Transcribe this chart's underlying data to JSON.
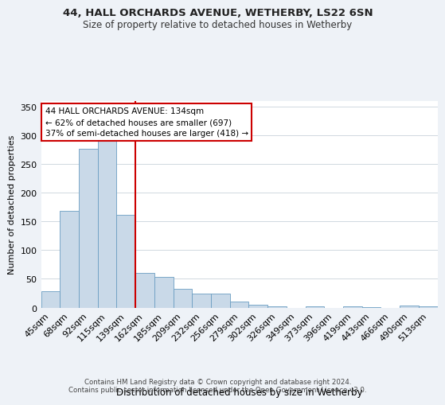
{
  "title": "44, HALL ORCHARDS AVENUE, WETHERBY, LS22 6SN",
  "subtitle": "Size of property relative to detached houses in Wetherby",
  "xlabel": "Distribution of detached houses by size in Wetherby",
  "ylabel": "Number of detached properties",
  "footer_line1": "Contains HM Land Registry data © Crown copyright and database right 2024.",
  "footer_line2": "Contains public sector information licensed under the Open Government Licence v3.0.",
  "annotation_line1": "44 HALL ORCHARDS AVENUE: 134sqm",
  "annotation_line2": "← 62% of detached houses are smaller (697)",
  "annotation_line3": "37% of semi-detached houses are larger (418) →",
  "bar_categories": [
    "45sqm",
    "68sqm",
    "92sqm",
    "115sqm",
    "139sqm",
    "162sqm",
    "185sqm",
    "209sqm",
    "232sqm",
    "256sqm",
    "279sqm",
    "302sqm",
    "326sqm",
    "349sqm",
    "373sqm",
    "396sqm",
    "419sqm",
    "443sqm",
    "466sqm",
    "490sqm",
    "513sqm"
  ],
  "bar_values": [
    29,
    168,
    276,
    291,
    161,
    60,
    53,
    33,
    25,
    25,
    10,
    5,
    2,
    0,
    2,
    0,
    2,
    1,
    0,
    4,
    2
  ],
  "bar_color": "#c9d9e8",
  "bar_edge_color": "#6b9ec2",
  "marker_bin_index": 4,
  "marker_color": "#cc0000",
  "ylim": [
    0,
    360
  ],
  "yticks": [
    0,
    50,
    100,
    150,
    200,
    250,
    300,
    350
  ],
  "annotation_box_color": "#ffffff",
  "annotation_box_edge": "#cc0000",
  "bg_color": "#eef2f7",
  "plot_bg": "#ffffff",
  "grid_color": "#d0d8e0"
}
